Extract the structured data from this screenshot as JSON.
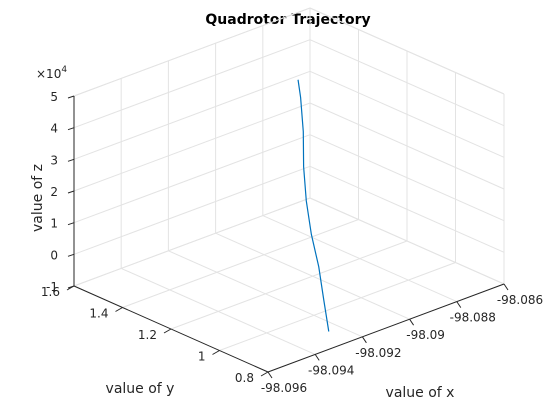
{
  "chart_data": {
    "type": "line3d",
    "title": "Quadrotor Trajectory",
    "xlabel": "value of x",
    "ylabel": "value of y",
    "zlabel": "value of z",
    "xlim": [
      -98.096,
      -98.086
    ],
    "ylim": [
      0.8,
      1.6
    ],
    "zlim": [
      -1,
      5
    ],
    "zexponent_label": "×10",
    "zexponent_power": "4",
    "xticks": [
      "-98.096",
      "-98.094",
      "-98.092",
      "-98.09",
      "-98.088",
      "-98.086"
    ],
    "yticks": [
      "0.8",
      "1",
      "1.2",
      "1.4",
      "1.6"
    ],
    "zticks": [
      "-1",
      "0",
      "1",
      "2",
      "3",
      "4",
      "5"
    ],
    "grid": true,
    "series": [
      {
        "color": "#0072bd",
        "points": [
          {
            "x": -98.0925,
            "y": 0.89,
            "z": -1.0
          },
          {
            "x": -98.0923,
            "y": 0.93,
            "z": -0.2
          },
          {
            "x": -98.092,
            "y": 0.98,
            "z": 0.6
          },
          {
            "x": -98.0918,
            "y": 1.03,
            "z": 1.4
          },
          {
            "x": -98.0915,
            "y": 1.08,
            "z": 2.2
          },
          {
            "x": -98.0911,
            "y": 1.13,
            "z": 3.0
          },
          {
            "x": -98.0906,
            "y": 1.18,
            "z": 3.8
          },
          {
            "x": -98.0902,
            "y": 1.23,
            "z": 4.6
          },
          {
            "x": -98.09,
            "y": 1.26,
            "z": 5.0
          }
        ]
      }
    ]
  }
}
